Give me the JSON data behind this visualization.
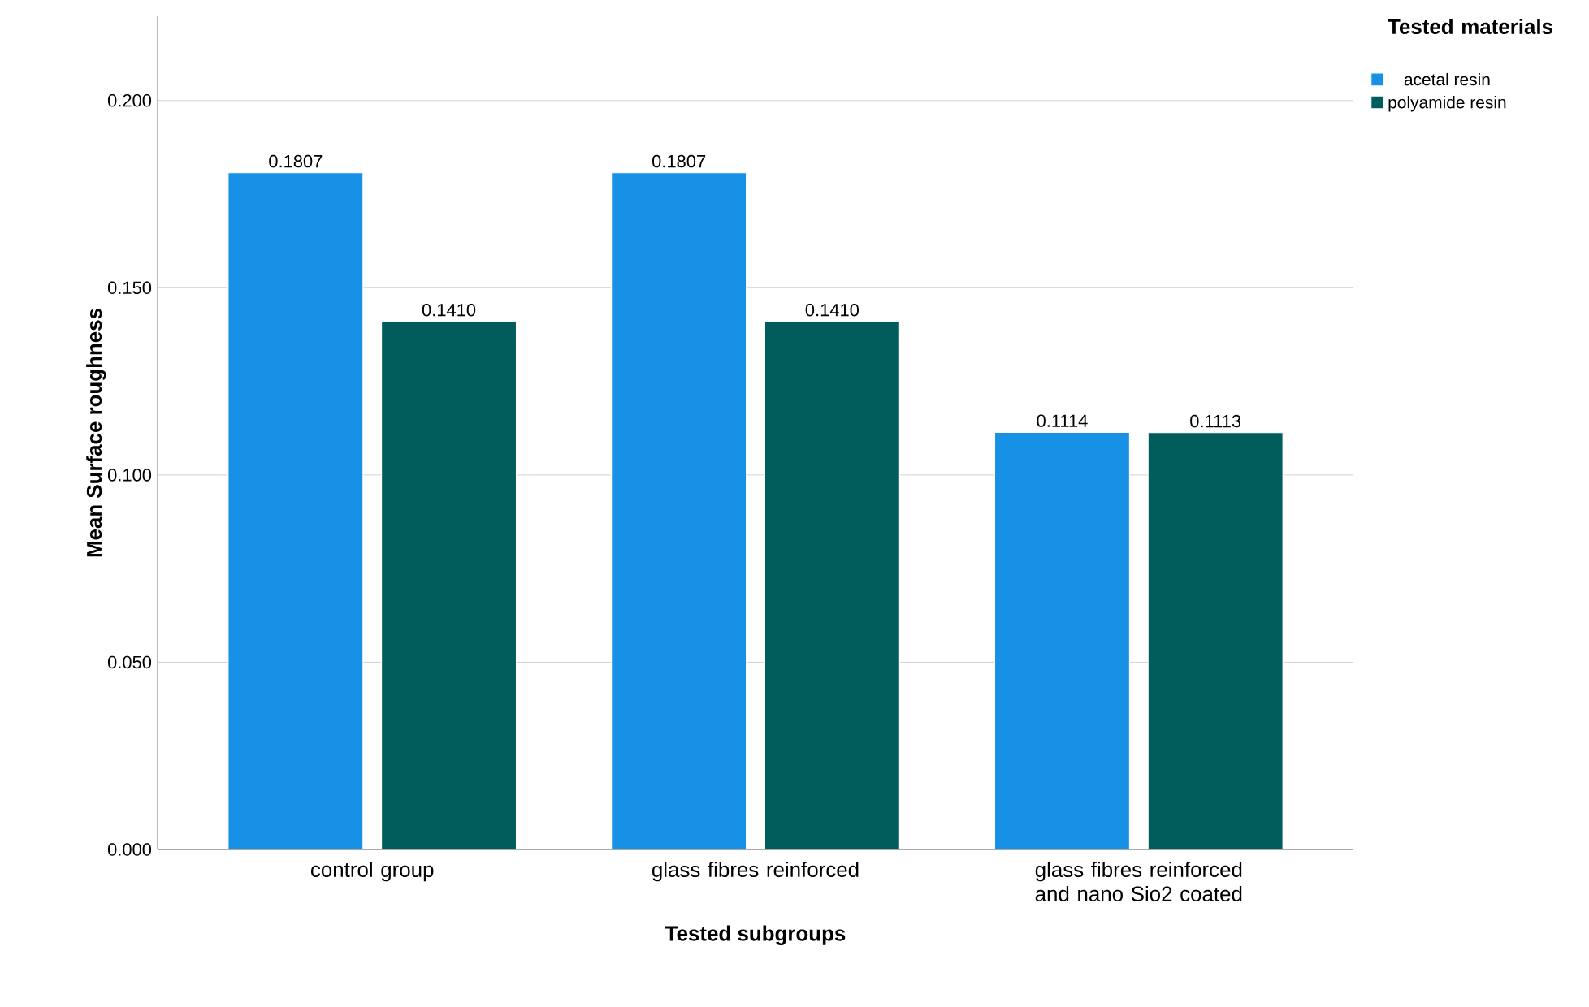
{
  "chart_data": {
    "type": "bar",
    "xlabel": "Tested subgroups",
    "ylabel": "Mean Surface roughness",
    "legend_title": "Tested materials",
    "categories": [
      "control group",
      "glass fibres reinforced",
      "glass fibres reinforced and nano Sio2 coated"
    ],
    "series": [
      {
        "name": "acetal resin",
        "color": "#1691e6",
        "values": [
          0.1807,
          0.1807,
          0.1114
        ],
        "value_labels": [
          "0.1807",
          "0.1807",
          "0.1114"
        ]
      },
      {
        "name": "polyamide resin",
        "color": "#005d5b",
        "values": [
          0.141,
          0.141,
          0.1113
        ],
        "value_labels": [
          "0.1410",
          "0.1410",
          "0.1113"
        ]
      }
    ],
    "ylim": [
      0,
      0.2225
    ],
    "yticks": [
      {
        "value": 0,
        "label": "0.000"
      },
      {
        "value": 0.05,
        "label": "0.050"
      },
      {
        "value": 0.1,
        "label": "0.100"
      },
      {
        "value": 0.15,
        "label": "0.150"
      },
      {
        "value": 0.2,
        "label": "0.200"
      }
    ],
    "grid": "y",
    "legend": "top right"
  }
}
